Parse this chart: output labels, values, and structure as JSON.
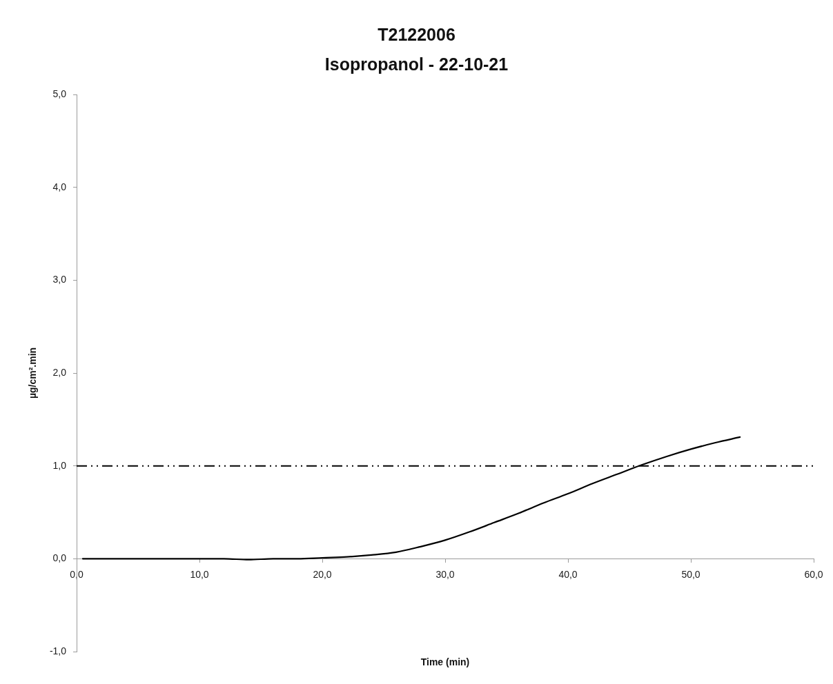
{
  "chart_data": {
    "type": "line",
    "title": "T2122006\nIsopropanol - 22-10-21",
    "xlabel": "Time (min)",
    "ylabel": "µg/cm².min",
    "x": [
      0.5,
      5,
      10,
      12,
      14,
      16,
      18,
      20,
      22,
      24,
      26,
      28,
      30,
      32,
      34,
      36,
      38,
      40,
      42,
      44,
      46,
      48,
      50,
      52,
      54
    ],
    "series": [
      {
        "color": "#000000",
        "values": [
          0,
          0,
          0,
          0,
          -0.01,
          0,
          0,
          0.01,
          0.02,
          0.04,
          0.07,
          0.13,
          0.2,
          0.29,
          0.39,
          0.49,
          0.6,
          0.7,
          0.81,
          0.91,
          1.01,
          1.1,
          1.18,
          1.25,
          1.31
        ]
      }
    ],
    "xlim": [
      0,
      60
    ],
    "xticks": [
      {
        "value": 0,
        "label": "0,0"
      },
      {
        "value": 10,
        "label": "10,0"
      },
      {
        "value": 20,
        "label": "20,0"
      },
      {
        "value": 30,
        "label": "30,0"
      },
      {
        "value": 40,
        "label": "40,0"
      },
      {
        "value": 50,
        "label": "50,0"
      },
      {
        "value": 60,
        "label": "60,0"
      }
    ],
    "ylim": [
      -1,
      5
    ],
    "yticks": [
      {
        "value": -1,
        "label": "-1,0"
      },
      {
        "value": 0,
        "label": "0,0"
      },
      {
        "value": 1,
        "label": "1,0"
      },
      {
        "value": 2,
        "label": "2,0"
      },
      {
        "value": 3,
        "label": "3,0"
      },
      {
        "value": 4,
        "label": "4,0"
      },
      {
        "value": 5,
        "label": "5,0"
      }
    ],
    "ref_lines": [
      {
        "axis": "y",
        "value": 1,
        "color": "#000000",
        "line_style": "dashdot"
      }
    ],
    "marker": "none"
  }
}
